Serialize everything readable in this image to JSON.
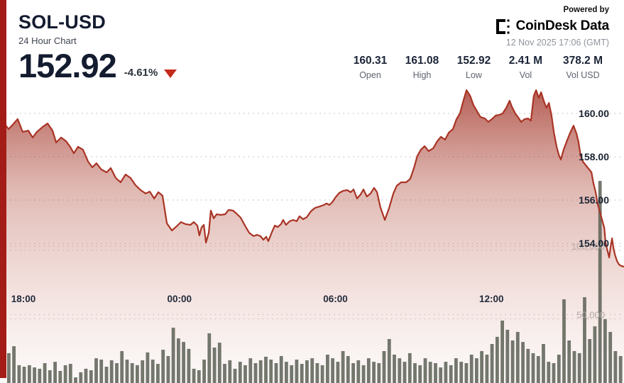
{
  "header": {
    "symbol": "SOL-USD",
    "subtitle": "24 Hour Chart",
    "price": "152.92",
    "change": "-4.61%",
    "direction": "down"
  },
  "branding": {
    "powered_by": "Powered by",
    "logo_text_1": "CoinDesk",
    "logo_text_2": "Data",
    "timestamp": "12 Nov 2025 17:06 (GMT)"
  },
  "stats": [
    {
      "value": "160.31",
      "label": "Open"
    },
    {
      "value": "161.08",
      "label": "High"
    },
    {
      "value": "152.92",
      "label": "Low"
    },
    {
      "value": "2.41 M",
      "label": "Vol"
    },
    {
      "value": "378.2 M",
      "label": "Vol USD"
    }
  ],
  "chart_data": {
    "type": "line+bar",
    "title": "SOL-USD 24 Hour Chart",
    "x_axis": {
      "labels": [
        "18:00",
        "00:00",
        "06:00",
        "12:00"
      ],
      "label_hours": [
        0.9,
        6.9,
        12.9,
        18.9
      ],
      "hours_span": 24
    },
    "price_axis": {
      "ticks": [
        "160.00",
        "158.00",
        "156.00",
        "154.00"
      ],
      "tick_values": [
        160,
        158,
        156,
        154
      ],
      "open": 160.31,
      "high": 161.08,
      "low": 152.92,
      "last": 152.92
    },
    "volume_axis": {
      "ticks": [
        "100,000",
        "50,000"
      ],
      "tick_values": [
        100000,
        50000
      ]
    },
    "price_series": {
      "name": "SOL-USD price",
      "points": [
        [
          0,
          159.08
        ],
        [
          0.16,
          159.54
        ],
        [
          0.33,
          159.28
        ],
        [
          0.49,
          159.48
        ],
        [
          0.68,
          159.74
        ],
        [
          0.87,
          159.15
        ],
        [
          1.09,
          159.21
        ],
        [
          1.26,
          158.89
        ],
        [
          1.42,
          159.15
        ],
        [
          1.64,
          159.38
        ],
        [
          1.83,
          159.54
        ],
        [
          2.02,
          159.21
        ],
        [
          2.16,
          158.66
        ],
        [
          2.35,
          158.89
        ],
        [
          2.54,
          158.72
        ],
        [
          2.7,
          158.46
        ],
        [
          2.84,
          158.16
        ],
        [
          3,
          158.46
        ],
        [
          3.19,
          158.33
        ],
        [
          3.39,
          157.77
        ],
        [
          3.55,
          157.51
        ],
        [
          3.71,
          157.7
        ],
        [
          3.9,
          157.41
        ],
        [
          4.1,
          157.28
        ],
        [
          4.26,
          157.48
        ],
        [
          4.45,
          157.02
        ],
        [
          4.64,
          156.82
        ],
        [
          4.83,
          157.18
        ],
        [
          5.02,
          157.02
        ],
        [
          5.21,
          156.69
        ],
        [
          5.41,
          156.46
        ],
        [
          5.6,
          156.3
        ],
        [
          5.76,
          156.39
        ],
        [
          5.93,
          156.07
        ],
        [
          6.09,
          156.36
        ],
        [
          6.25,
          156.2
        ],
        [
          6.42,
          154.92
        ],
        [
          6.61,
          154.59
        ],
        [
          6.8,
          154.79
        ],
        [
          6.96,
          154.98
        ],
        [
          7.13,
          154.89
        ],
        [
          7.32,
          154.85
        ],
        [
          7.45,
          154.98
        ],
        [
          7.59,
          154.82
        ],
        [
          7.67,
          154.36
        ],
        [
          7.75,
          154.72
        ],
        [
          7.84,
          154.85
        ],
        [
          7.92,
          154.03
        ],
        [
          8.03,
          154.49
        ],
        [
          8.11,
          155.51
        ],
        [
          8.22,
          155.15
        ],
        [
          8.33,
          155.34
        ],
        [
          8.49,
          155.31
        ],
        [
          8.66,
          155.34
        ],
        [
          8.79,
          155.54
        ],
        [
          8.96,
          155.51
        ],
        [
          9.09,
          155.38
        ],
        [
          9.26,
          155.18
        ],
        [
          9.42,
          154.82
        ],
        [
          9.58,
          154.49
        ],
        [
          9.75,
          154.33
        ],
        [
          9.88,
          154.39
        ],
        [
          10.02,
          154.33
        ],
        [
          10.13,
          154.16
        ],
        [
          10.24,
          154.3
        ],
        [
          10.32,
          154.1
        ],
        [
          10.46,
          154.52
        ],
        [
          10.57,
          154.82
        ],
        [
          10.68,
          154.75
        ],
        [
          10.81,
          154.89
        ],
        [
          10.89,
          155.08
        ],
        [
          11,
          154.85
        ],
        [
          11.14,
          155.02
        ],
        [
          11.28,
          155.08
        ],
        [
          11.41,
          155.02
        ],
        [
          11.52,
          155.25
        ],
        [
          11.66,
          155.11
        ],
        [
          11.8,
          155.21
        ],
        [
          11.96,
          155.48
        ],
        [
          12.12,
          155.64
        ],
        [
          12.29,
          155.7
        ],
        [
          12.45,
          155.77
        ],
        [
          12.56,
          155.84
        ],
        [
          12.67,
          155.77
        ],
        [
          12.78,
          155.9
        ],
        [
          12.91,
          156.13
        ],
        [
          13.05,
          156.33
        ],
        [
          13.21,
          156.43
        ],
        [
          13.35,
          156.46
        ],
        [
          13.49,
          156.36
        ],
        [
          13.6,
          156.49
        ],
        [
          13.73,
          156.07
        ],
        [
          13.87,
          156.26
        ],
        [
          13.98,
          156.49
        ],
        [
          14.11,
          156.16
        ],
        [
          14.25,
          156.3
        ],
        [
          14.39,
          156.56
        ],
        [
          14.5,
          156.36
        ],
        [
          14.63,
          155.67
        ],
        [
          14.8,
          155.08
        ],
        [
          14.96,
          155.61
        ],
        [
          15.13,
          156.3
        ],
        [
          15.26,
          156.66
        ],
        [
          15.43,
          156.82
        ],
        [
          15.62,
          156.82
        ],
        [
          15.78,
          156.98
        ],
        [
          15.92,
          157.48
        ],
        [
          16.05,
          158.03
        ],
        [
          16.19,
          158.33
        ],
        [
          16.33,
          158.49
        ],
        [
          16.49,
          158.26
        ],
        [
          16.66,
          158.39
        ],
        [
          16.82,
          158.72
        ],
        [
          16.96,
          158.92
        ],
        [
          17.12,
          158.79
        ],
        [
          17.26,
          159.11
        ],
        [
          17.42,
          159.28
        ],
        [
          17.56,
          159.74
        ],
        [
          17.69,
          160
        ],
        [
          17.8,
          160.49
        ],
        [
          17.94,
          161.08
        ],
        [
          18.08,
          160.82
        ],
        [
          18.21,
          160.39
        ],
        [
          18.35,
          160.1
        ],
        [
          18.48,
          159.84
        ],
        [
          18.65,
          159.77
        ],
        [
          18.78,
          159.61
        ],
        [
          18.92,
          159.74
        ],
        [
          19.06,
          159.9
        ],
        [
          19.19,
          159.93
        ],
        [
          19.33,
          160
        ],
        [
          19.47,
          160.26
        ],
        [
          19.6,
          160.59
        ],
        [
          19.68,
          160.33
        ],
        [
          19.82,
          160
        ],
        [
          19.96,
          159.77
        ],
        [
          20.04,
          159.61
        ],
        [
          20.18,
          159.74
        ],
        [
          20.31,
          159.77
        ],
        [
          20.42,
          159.67
        ],
        [
          20.53,
          160.82
        ],
        [
          20.62,
          161.08
        ],
        [
          20.72,
          160.72
        ],
        [
          20.81,
          160.98
        ],
        [
          20.92,
          160.56
        ],
        [
          21.02,
          160.26
        ],
        [
          21.11,
          160.49
        ],
        [
          21.21,
          159.93
        ],
        [
          21.3,
          159.15
        ],
        [
          21.41,
          158.46
        ],
        [
          21.49,
          158.1
        ],
        [
          21.57,
          157.87
        ],
        [
          21.68,
          158.33
        ],
        [
          21.81,
          158.75
        ],
        [
          21.92,
          159.08
        ],
        [
          22.06,
          159.44
        ],
        [
          22.17,
          159.08
        ],
        [
          22.25,
          158.69
        ],
        [
          22.33,
          158.07
        ],
        [
          22.42,
          157.77
        ],
        [
          22.53,
          157.61
        ],
        [
          22.64,
          157.44
        ],
        [
          22.75,
          157.28
        ],
        [
          22.82,
          156.79
        ],
        [
          22.91,
          156.36
        ],
        [
          22.99,
          155.8
        ],
        [
          23.07,
          155.48
        ],
        [
          23.15,
          155.11
        ],
        [
          23.24,
          154.72
        ],
        [
          23.29,
          154.03
        ],
        [
          23.37,
          153.64
        ],
        [
          23.43,
          153.34
        ],
        [
          23.48,
          153.8
        ],
        [
          23.54,
          154.23
        ],
        [
          23.59,
          153.8
        ],
        [
          23.65,
          153.48
        ],
        [
          23.73,
          153.18
        ],
        [
          23.81,
          153.02
        ],
        [
          23.89,
          152.95
        ],
        [
          24,
          152.92
        ]
      ]
    },
    "volume_series": {
      "name": "Volume",
      "values": [
        21800,
        26900,
        13000,
        11900,
        13000,
        11400,
        10400,
        14500,
        9300,
        15500,
        8800,
        13000,
        14000,
        4100,
        7800,
        10400,
        9300,
        18100,
        17100,
        11900,
        16600,
        14500,
        23300,
        17100,
        14500,
        13000,
        16600,
        22300,
        17100,
        14000,
        24300,
        19700,
        40400,
        32600,
        30000,
        24900,
        10400,
        9300,
        17100,
        36300,
        25900,
        29500,
        14000,
        16600,
        10400,
        15500,
        13000,
        18100,
        14500,
        16600,
        19200,
        17100,
        14500,
        19700,
        15500,
        13000,
        17100,
        14000,
        16600,
        18100,
        14500,
        13000,
        20700,
        18100,
        15500,
        23300,
        19700,
        14500,
        16600,
        13000,
        18100,
        15500,
        14500,
        23300,
        32100,
        20700,
        18100,
        15500,
        21800,
        14500,
        13000,
        18100,
        15500,
        14500,
        11400,
        15500,
        13000,
        18100,
        15500,
        14500,
        20700,
        18100,
        23300,
        20700,
        28500,
        33700,
        45600,
        38900,
        31100,
        37300,
        30000,
        24900,
        21800,
        19700,
        28500,
        15500,
        14500,
        20700,
        61100,
        31100,
        23300,
        21800,
        62700,
        32100,
        41400,
        147600,
        46600,
        37300,
        23300,
        19700
      ]
    },
    "colors": {
      "line": "#a93425",
      "fill_top": "#9c2b1f",
      "accent_strip": "#a41c17",
      "volume_bars": "#5c6055",
      "text_dark": "#1b2437",
      "text_gray": "#5d646e",
      "change_red": "#c52a1a"
    },
    "layout_hints": {
      "grid": "dotted-horizontal",
      "price_labels": "right-inside",
      "volume_scale_right": true
    }
  }
}
